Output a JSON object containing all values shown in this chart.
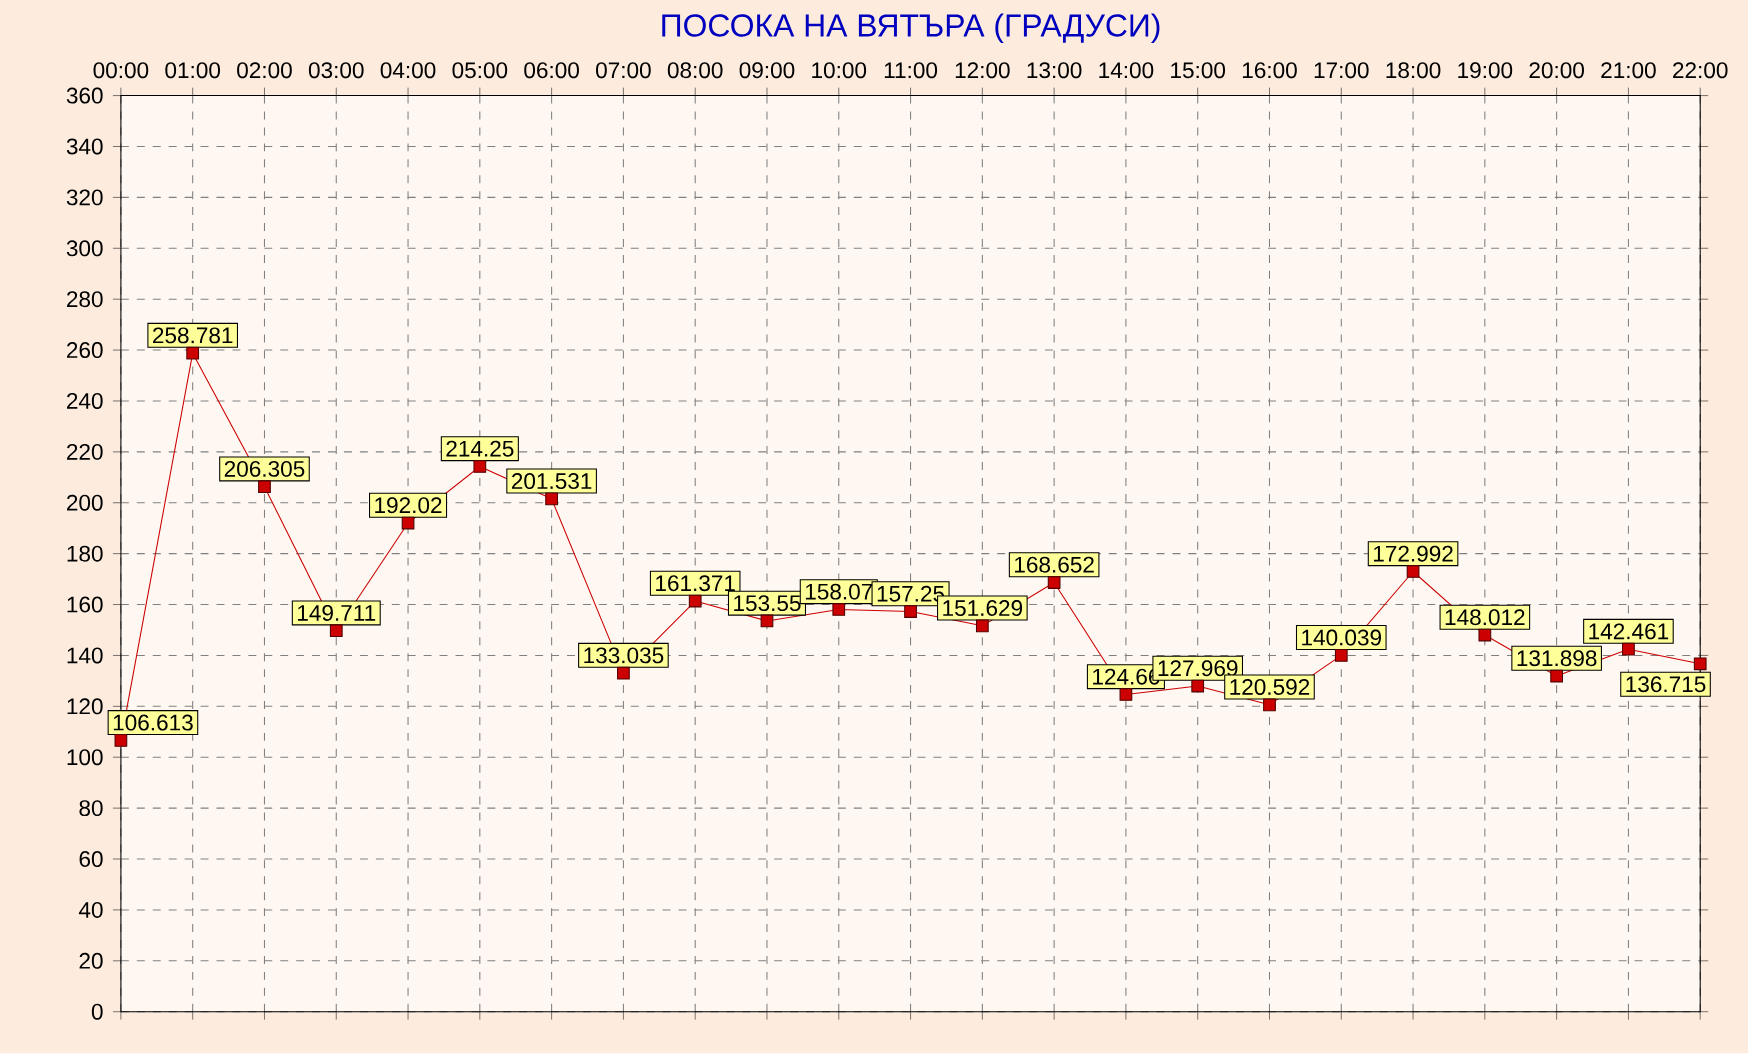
{
  "chart_data": {
    "type": "line",
    "title": "ПОСОКА НА ВЯТЪРА    (ГРАДУСИ)",
    "categories": [
      "00:00",
      "01:00",
      "02:00",
      "03:00",
      "04:00",
      "05:00",
      "06:00",
      "07:00",
      "08:00",
      "09:00",
      "10:00",
      "11:00",
      "12:00",
      "13:00",
      "14:00",
      "15:00",
      "16:00",
      "17:00",
      "18:00",
      "19:00",
      "20:00",
      "21:00",
      "22:00"
    ],
    "values": [
      106.613,
      258.781,
      206.305,
      149.711,
      192.02,
      214.25,
      201.531,
      133.035,
      161.371,
      153.55,
      158.07,
      157.25,
      151.629,
      168.652,
      124.66,
      127.969,
      120.592,
      140.039,
      172.992,
      148.012,
      131.898,
      142.461,
      136.715
    ],
    "value_labels": [
      "106.613",
      "258.781",
      "206.305",
      "149.711",
      "192.02",
      "214.25",
      "201.531",
      "133.035",
      "161.371",
      "153.55",
      "158.07",
      "157.25",
      "151.629",
      "168.652",
      "124.66",
      "127.969",
      "120.592",
      "140.039",
      "172.992",
      "148.012",
      "131.898",
      "142.461",
      "136.715"
    ],
    "color": "#cc0000",
    "ylim": [
      0,
      360
    ],
    "yticks": [
      0,
      20,
      40,
      60,
      80,
      100,
      120,
      140,
      160,
      180,
      200,
      220,
      240,
      260,
      280,
      300,
      320,
      340,
      360
    ],
    "grid": true,
    "marker": "square",
    "line_style": "solid"
  }
}
